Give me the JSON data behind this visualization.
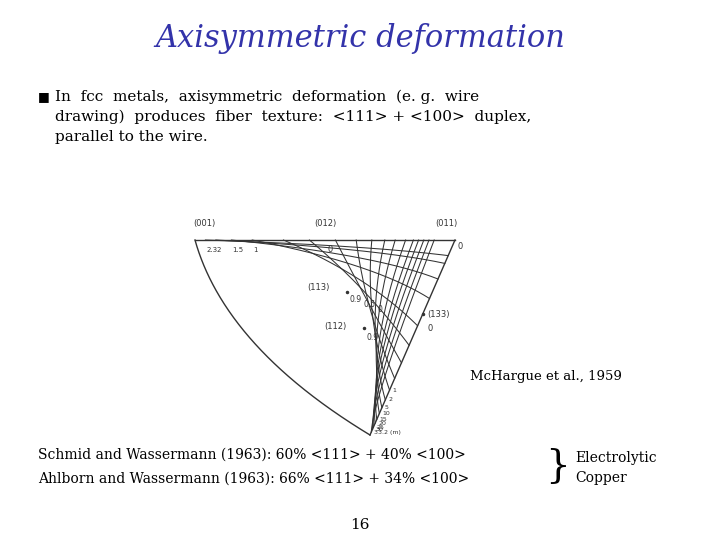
{
  "title": "Axisymmetric deformation",
  "title_color": "#3333aa",
  "title_fontsize": 22,
  "bullet_text_line1": "In  fcc  metals,  axisymmetric  deformation  (e. g.  wire",
  "bullet_text_line2": "drawing)  produces  fiber  texture:  <111> + <100>  duplex,",
  "bullet_text_line3": "parallel to the wire.",
  "schmid_text": "Schmid and Wassermann (1963): 60% <111> + 40% <100>",
  "ahlborn_text": "Ahlborn and Wassermann (1963): 66% <111> + 34% <100>",
  "brace_label_line1": "Electrolytic",
  "brace_label_line2": "Copper",
  "citation": "McHargue et al., 1959",
  "page_number": "16",
  "background_color": "#ffffff",
  "text_color": "#000000",
  "diagram_color": "#333333"
}
